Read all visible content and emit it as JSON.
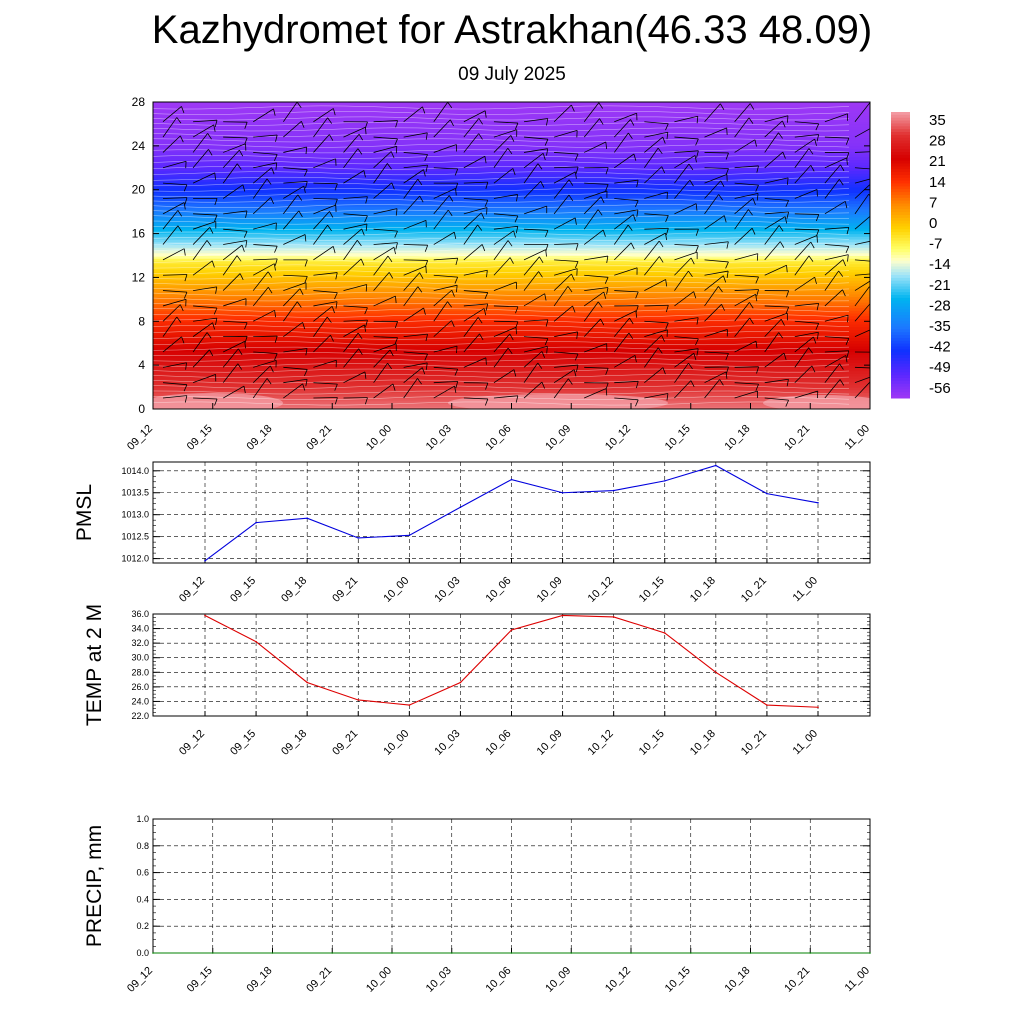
{
  "header": {
    "title": "Kazhydromet for Astrakhan(46.33 48.09)",
    "subtitle": "09 July 2025"
  },
  "chart_data": [
    {
      "type": "heatmap",
      "name": "vertical-profile",
      "y_ticks": [
        "0",
        "4",
        "8",
        "12",
        "16",
        "20",
        "24",
        "28"
      ],
      "ylim": [
        0,
        28
      ],
      "x_ticks": [
        "09_12",
        "09_15",
        "09_18",
        "09_21",
        "10_00",
        "10_03",
        "10_06",
        "10_09",
        "10_12",
        "10_15",
        "10_18",
        "10_21",
        "11_00"
      ],
      "colorbar_labels": [
        "35",
        "28",
        "21",
        "14",
        "7",
        "0",
        "-7",
        "-14",
        "-21",
        "-28",
        "-35",
        "-42",
        "-49",
        "-56"
      ],
      "colorbar_range": [
        -60,
        38
      ],
      "temperature_by_level": [
        {
          "level": 0,
          "value": 35
        },
        {
          "level": 2,
          "value": 30
        },
        {
          "level": 5,
          "value": 23
        },
        {
          "level": 8,
          "value": 15
        },
        {
          "level": 11,
          "value": 4
        },
        {
          "level": 13.5,
          "value": -6
        },
        {
          "level": 14,
          "value": -12
        },
        {
          "level": 16,
          "value": -24
        },
        {
          "level": 18,
          "value": -35
        },
        {
          "level": 20,
          "value": -44
        },
        {
          "level": 22,
          "value": -52
        },
        {
          "level": 24,
          "value": -57
        },
        {
          "level": 28,
          "value": -60
        }
      ],
      "wind_barbs": true,
      "colors": {
        "hot_pink": "#f4a0a8",
        "red": "#d60000",
        "orange": "#ff8c00",
        "yellow": "#ffff66",
        "cyan": "#00b4f0",
        "blue": "#1030ff",
        "violet": "#9e38f5"
      }
    },
    {
      "type": "line",
      "name": "pmsl",
      "ylabel": "PMSL",
      "ylim": [
        1011.9,
        1014.2
      ],
      "y_ticks": [
        "1012.0",
        "1012.5",
        "1013.0",
        "1013.5",
        "1014.0"
      ],
      "categories": [
        "09_12",
        "09_15",
        "09_18",
        "09_21",
        "10_00",
        "10_03",
        "10_06",
        "10_09",
        "10_12",
        "10_15",
        "10_18",
        "10_21",
        "11_00"
      ],
      "values": [
        1011.95,
        1012.82,
        1012.92,
        1012.47,
        1012.53,
        1013.17,
        1013.8,
        1013.5,
        1013.55,
        1013.77,
        1014.12,
        1013.48,
        1013.27
      ],
      "color": "#0000dd",
      "grid": true
    },
    {
      "type": "line",
      "name": "temp-2m",
      "ylabel": "TEMP at 2 M",
      "ylim": [
        22.0,
        36.0
      ],
      "y_ticks": [
        "22.0",
        "24.0",
        "26.0",
        "28.0",
        "30.0",
        "32.0",
        "34.0",
        "36.0"
      ],
      "categories": [
        "09_12",
        "09_15",
        "09_18",
        "09_21",
        "10_00",
        "10_03",
        "10_06",
        "10_09",
        "10_12",
        "10_15",
        "10_18",
        "10_21",
        "11_00"
      ],
      "values": [
        35.8,
        32.2,
        26.6,
        24.2,
        23.5,
        26.6,
        33.8,
        35.8,
        35.6,
        33.4,
        28.0,
        23.5,
        23.2
      ],
      "color": "#dd0000",
      "grid": true
    },
    {
      "type": "line",
      "name": "precip",
      "ylabel": "PRECIP, mm",
      "ylim": [
        0.0,
        1.0
      ],
      "y_ticks": [
        "0.0",
        "0.2",
        "0.4",
        "0.6",
        "0.8",
        "1.0"
      ],
      "categories": [
        "09_12",
        "09_15",
        "09_18",
        "09_21",
        "10_00",
        "10_03",
        "10_06",
        "10_09",
        "10_12",
        "10_15",
        "10_18",
        "10_21",
        "11_00"
      ],
      "values": [
        0,
        0,
        0,
        0,
        0,
        0,
        0,
        0,
        0,
        0,
        0,
        0,
        0
      ],
      "color": "#008000",
      "grid": true
    }
  ]
}
